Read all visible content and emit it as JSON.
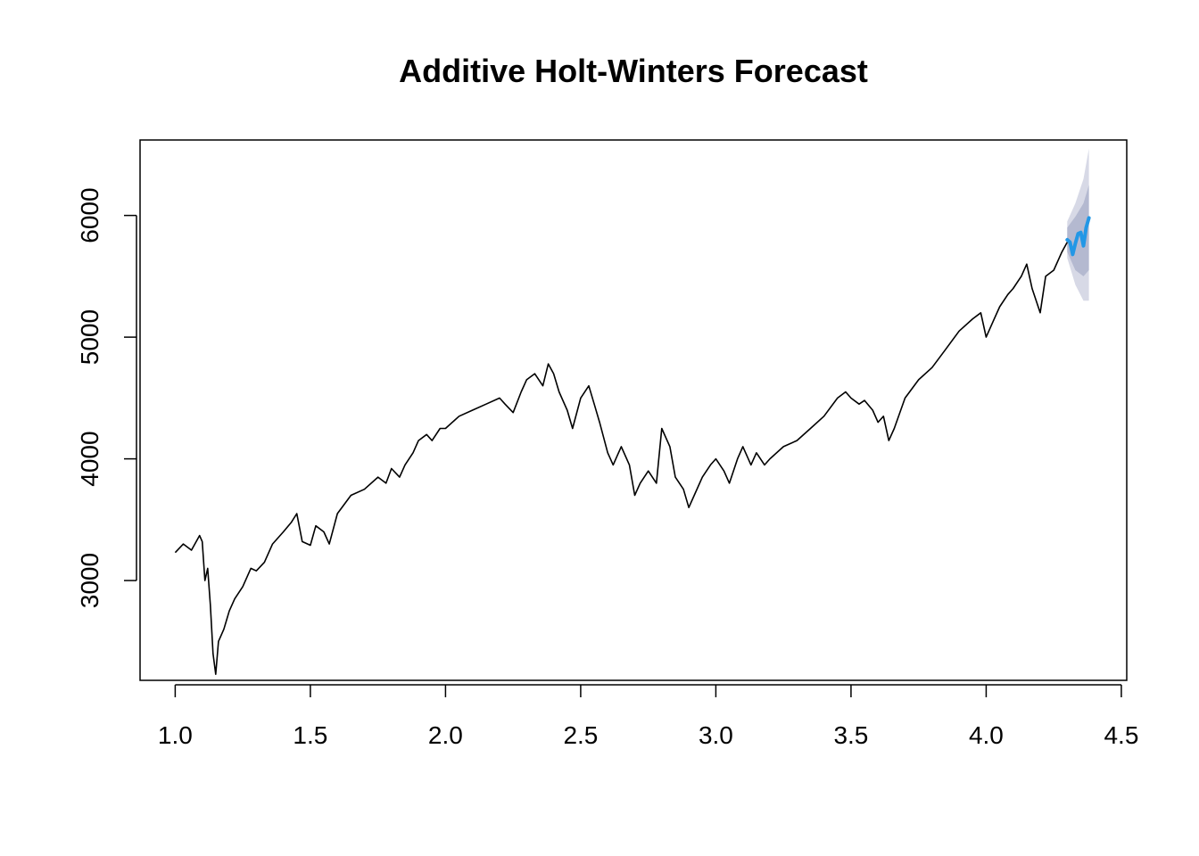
{
  "chart_data": {
    "type": "line",
    "title": "Additive Holt-Winters Forecast",
    "xlabel": "",
    "ylabel": "",
    "xlim": [
      0.87,
      4.52
    ],
    "ylim": [
      2180,
      6620
    ],
    "x_ticks": [
      "1.0",
      "1.5",
      "2.0",
      "2.5",
      "3.0",
      "3.5",
      "4.0",
      "4.5"
    ],
    "x_tick_values": [
      1.0,
      1.5,
      2.0,
      2.5,
      3.0,
      3.5,
      4.0,
      4.5
    ],
    "y_ticks": [
      "3000",
      "4000",
      "5000",
      "6000"
    ],
    "y_tick_values": [
      3000,
      4000,
      5000,
      6000
    ],
    "grid": false,
    "colors": {
      "observed": "#000000",
      "forecast": "#2297e6",
      "band_80": "#b4b9d0",
      "band_95": "#d7d9e6"
    },
    "series": [
      {
        "role": "observed",
        "x": [
          1.0,
          1.03,
          1.06,
          1.09,
          1.1,
          1.11,
          1.12,
          1.13,
          1.14,
          1.15,
          1.16,
          1.18,
          1.2,
          1.22,
          1.25,
          1.28,
          1.3,
          1.33,
          1.36,
          1.4,
          1.43,
          1.45,
          1.47,
          1.5,
          1.52,
          1.55,
          1.57,
          1.6,
          1.65,
          1.7,
          1.75,
          1.78,
          1.8,
          1.83,
          1.85,
          1.88,
          1.9,
          1.93,
          1.95,
          1.98,
          2.0,
          2.05,
          2.1,
          2.15,
          2.2,
          2.22,
          2.25,
          2.28,
          2.3,
          2.33,
          2.36,
          2.38,
          2.4,
          2.42,
          2.45,
          2.47,
          2.5,
          2.53,
          2.55,
          2.57,
          2.6,
          2.62,
          2.65,
          2.68,
          2.7,
          2.72,
          2.75,
          2.78,
          2.8,
          2.83,
          2.85,
          2.88,
          2.9,
          2.92,
          2.95,
          2.98,
          3.0,
          3.03,
          3.05,
          3.08,
          3.1,
          3.13,
          3.15,
          3.18,
          3.2,
          3.25,
          3.3,
          3.35,
          3.4,
          3.45,
          3.48,
          3.5,
          3.53,
          3.55,
          3.58,
          3.6,
          3.62,
          3.64,
          3.66,
          3.7,
          3.75,
          3.8,
          3.85,
          3.9,
          3.95,
          3.98,
          4.0,
          4.03,
          4.05,
          4.08,
          4.1,
          4.13,
          4.15,
          4.17,
          4.2,
          4.22,
          4.25,
          4.28,
          4.3
        ],
        "values": [
          3230,
          3300,
          3250,
          3370,
          3320,
          3000,
          3100,
          2800,
          2400,
          2230,
          2500,
          2600,
          2750,
          2850,
          2950,
          3100,
          3080,
          3150,
          3300,
          3400,
          3480,
          3550,
          3320,
          3290,
          3450,
          3400,
          3300,
          3550,
          3700,
          3750,
          3850,
          3800,
          3920,
          3850,
          3950,
          4050,
          4150,
          4200,
          4150,
          4250,
          4250,
          4350,
          4400,
          4450,
          4500,
          4450,
          4380,
          4550,
          4650,
          4700,
          4600,
          4780,
          4700,
          4550,
          4400,
          4250,
          4500,
          4600,
          4450,
          4300,
          4050,
          3950,
          4100,
          3950,
          3700,
          3800,
          3900,
          3800,
          4250,
          4100,
          3850,
          3750,
          3600,
          3700,
          3850,
          3950,
          4000,
          3900,
          3800,
          4000,
          4100,
          3950,
          4050,
          3950,
          4000,
          4100,
          4150,
          4250,
          4350,
          4500,
          4550,
          4500,
          4450,
          4480,
          4400,
          4300,
          4350,
          4150,
          4250,
          4500,
          4650,
          4750,
          4900,
          5050,
          5150,
          5200,
          5000,
          5150,
          5250,
          5350,
          5400,
          5500,
          5600,
          5400,
          5200,
          5500,
          5550,
          5700,
          5780
        ]
      },
      {
        "role": "forecast",
        "x": [
          4.3,
          4.31,
          4.32,
          4.33,
          4.34,
          4.35,
          4.36,
          4.37,
          4.38
        ],
        "values": [
          5800,
          5780,
          5680,
          5770,
          5850,
          5860,
          5750,
          5900,
          5980
        ]
      },
      {
        "role": "interval-80",
        "x": [
          4.3,
          4.33,
          4.36,
          4.38
        ],
        "lower": [
          5700,
          5550,
          5500,
          5550
        ],
        "upper": [
          5900,
          5990,
          6100,
          6250
        ]
      },
      {
        "role": "interval-95",
        "x": [
          4.3,
          4.33,
          4.36,
          4.38
        ],
        "lower": [
          5650,
          5430,
          5300,
          5300
        ],
        "upper": [
          5950,
          6100,
          6300,
          6550
        ]
      }
    ]
  }
}
